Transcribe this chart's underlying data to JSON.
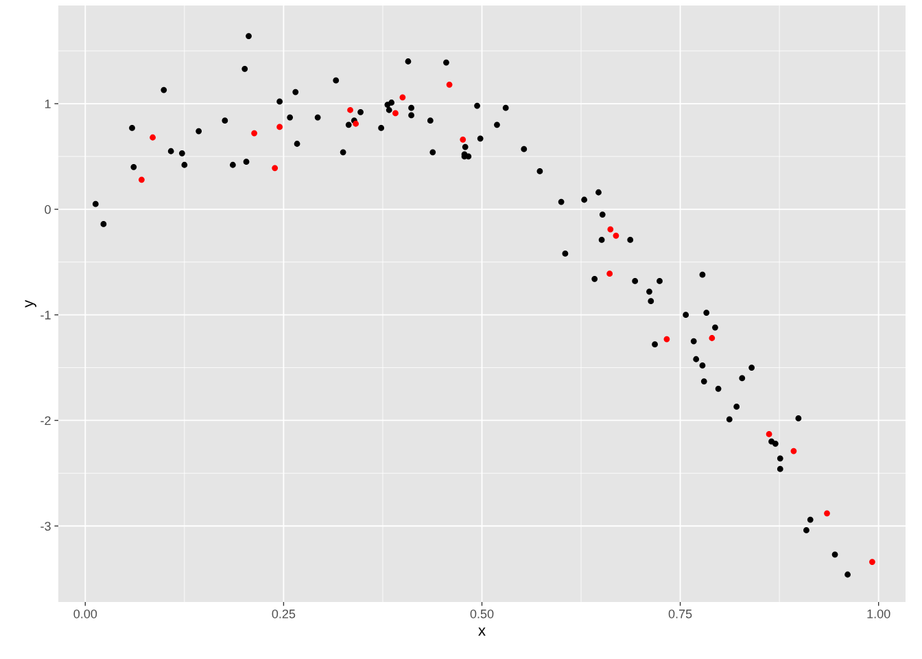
{
  "chart_data": {
    "type": "scatter",
    "xlabel": "x",
    "ylabel": "y",
    "xlim": [
      -0.034,
      1.034
    ],
    "ylim": [
      -3.72,
      1.93
    ],
    "xticks": [
      {
        "value": 0,
        "label": "0.00"
      },
      {
        "value": 0.25,
        "label": "0.25"
      },
      {
        "value": 0.5,
        "label": "0.50"
      },
      {
        "value": 0.75,
        "label": "0.75"
      },
      {
        "value": 1,
        "label": "1.00"
      }
    ],
    "yticks": [
      -3,
      -2,
      -1,
      0,
      1
    ],
    "grid": true,
    "marker": "circle",
    "series": [
      {
        "color": "#000000",
        "x": [
          0.013,
          0.023,
          0.059,
          0.061,
          0.099,
          0.108,
          0.122,
          0.125,
          0.143,
          0.176,
          0.186,
          0.201,
          0.203,
          0.206,
          0.245,
          0.258,
          0.265,
          0.267,
          0.293,
          0.316,
          0.325,
          0.332,
          0.339,
          0.347,
          0.373,
          0.381,
          0.383,
          0.386,
          0.407,
          0.411,
          0.411,
          0.435,
          0.438,
          0.455,
          0.479,
          0.478,
          0.478,
          0.483,
          0.494,
          0.498,
          0.519,
          0.53,
          0.553,
          0.573,
          0.6,
          0.605,
          0.629,
          0.642,
          0.647,
          0.652,
          0.651,
          0.687,
          0.693,
          0.711,
          0.713,
          0.718,
          0.724,
          0.757,
          0.767,
          0.77,
          0.778,
          0.778,
          0.78,
          0.783,
          0.794,
          0.798,
          0.812,
          0.821,
          0.828,
          0.84,
          0.865,
          0.87,
          0.876,
          0.876,
          0.899,
          0.909,
          0.914,
          0.945,
          0.961
        ],
        "values": [
          0.05,
          -0.14,
          0.77,
          0.4,
          1.13,
          0.55,
          0.53,
          0.42,
          0.74,
          0.84,
          0.42,
          1.33,
          0.45,
          1.64,
          1.02,
          0.87,
          1.11,
          0.62,
          0.87,
          1.22,
          0.54,
          0.8,
          0.84,
          0.92,
          0.77,
          0.99,
          0.94,
          1.01,
          1.4,
          0.96,
          0.89,
          0.84,
          0.54,
          1.39,
          0.59,
          0.52,
          0.5,
          0.5,
          0.98,
          0.67,
          0.8,
          0.96,
          0.57,
          0.36,
          0.07,
          -0.42,
          0.09,
          -0.66,
          0.16,
          -0.05,
          -0.29,
          -0.29,
          -0.68,
          -0.78,
          -0.87,
          -1.28,
          -0.68,
          -1.0,
          -1.25,
          -1.42,
          -0.62,
          -1.48,
          -1.63,
          -0.98,
          -1.12,
          -1.7,
          -1.99,
          -1.87,
          -1.6,
          -1.5,
          -2.2,
          -2.22,
          -2.36,
          -2.46,
          -1.98,
          -3.04,
          -2.94,
          -3.27,
          -3.46
        ]
      },
      {
        "color": "#ff0000",
        "x": [
          0.071,
          0.085,
          0.213,
          0.239,
          0.245,
          0.334,
          0.341,
          0.391,
          0.4,
          0.459,
          0.476,
          0.661,
          0.662,
          0.669,
          0.733,
          0.79,
          0.862,
          0.893,
          0.935,
          0.992
        ],
        "values": [
          0.28,
          0.68,
          0.72,
          0.39,
          0.78,
          0.94,
          0.81,
          0.91,
          1.06,
          1.18,
          0.66,
          -0.61,
          -0.19,
          -0.25,
          -1.23,
          -1.22,
          -2.13,
          -2.29,
          -2.88,
          -3.34
        ]
      }
    ]
  }
}
